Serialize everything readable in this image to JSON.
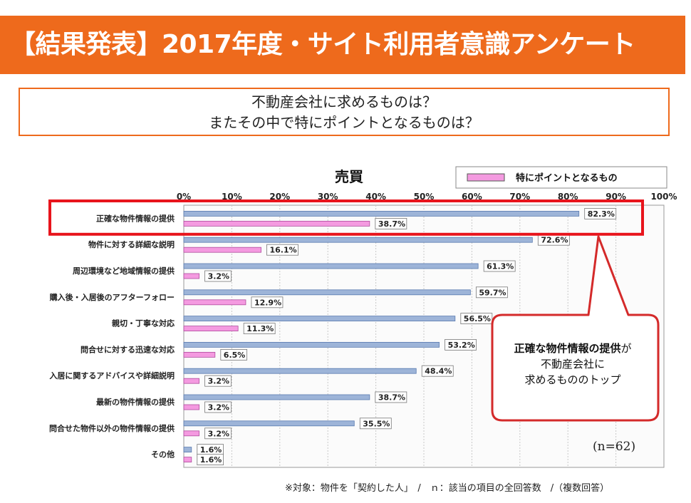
{
  "header": {
    "title": "【結果発表】2017年度・サイト利用者意識アンケート"
  },
  "question": {
    "line1": "不動産会社に求めるものは？",
    "line2": "またその中で特にポイントとなるものは？"
  },
  "chart_data": {
    "type": "bar",
    "orientation": "horizontal",
    "title": "売買",
    "categories": [
      "正確な物件情報の提供",
      "物件に対する詳細な説明",
      "周辺環境など地域情報の提供",
      "購入後・入居後のアフターフォロー",
      "親切・丁寧な対応",
      "問合せに対する迅速な対応",
      "入居に関するアドバイスや詳細説明",
      "最新の物件情報の提供",
      "問合せた物件以外の物件情報の提供",
      "その他"
    ],
    "series": [
      {
        "values": [
          82.3,
          72.6,
          61.3,
          59.7,
          56.5,
          53.2,
          48.4,
          38.7,
          35.5,
          1.6
        ],
        "color": "#9db4d8"
      },
      {
        "name": "特にポイントとなるもの",
        "values": [
          38.7,
          16.1,
          3.2,
          12.9,
          11.3,
          6.5,
          3.2,
          3.2,
          3.2,
          1.6
        ],
        "color": "#f49ae0"
      }
    ],
    "data_labels": [
      [
        "82.3%",
        "72.6%",
        "61.3%",
        "59.7%",
        "56.5%",
        "53.2%",
        "48.4%",
        "38.7%",
        "35.5%",
        "1.6%"
      ],
      [
        "38.7%",
        "16.1%",
        "3.2%",
        "12.9%",
        "11.3%",
        "6.5%",
        "3.2%",
        "3.2%",
        "3.2%",
        "1.6%"
      ]
    ],
    "xticks": [
      "0%",
      "10%",
      "20%",
      "30%",
      "40%",
      "50%",
      "60%",
      "70%",
      "80%",
      "90%",
      "100%"
    ],
    "xlim": [
      0,
      100
    ],
    "legend_position": "top-right",
    "grid": true,
    "highlight_category_index": 0,
    "highlight_color": "#e8141c",
    "sample_label": "(n=62)"
  },
  "callout": {
    "bold": "正確な物件情報の提供",
    "tail": "が",
    "line2": "不動産会社に",
    "line3": "求めるもののトップ",
    "border_color": "#d42a2a"
  },
  "footnote": "※対象：物件を「契約した人」　/　ｎ：該当の項目の全回答数　/（複数回答）"
}
